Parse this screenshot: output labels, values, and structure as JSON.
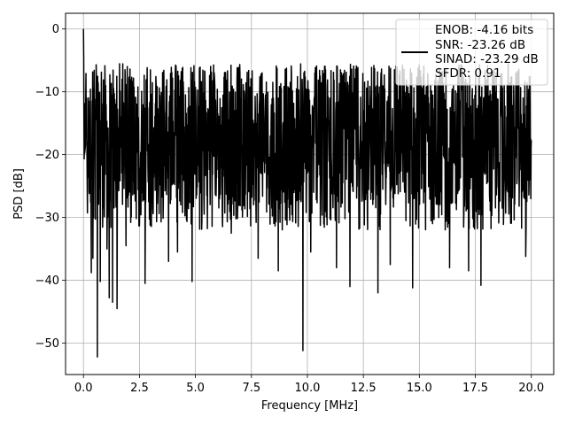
{
  "chart_data": {
    "type": "line",
    "title": "",
    "xlabel": "Frequency [MHz]",
    "ylabel": "PSD [dB]",
    "xlim": [
      -0.8,
      21.0
    ],
    "ylim": [
      -55.0,
      2.5
    ],
    "xticks": [
      0.0,
      2.5,
      5.0,
      7.5,
      10.0,
      12.5,
      15.0,
      17.5,
      20.0
    ],
    "xtick_labels": [
      "0.0",
      "2.5",
      "5.0",
      "7.5",
      "10.0",
      "12.5",
      "15.0",
      "17.5",
      "20.0"
    ],
    "yticks": [
      0,
      -10,
      -20,
      -30,
      -40,
      -50
    ],
    "ytick_labels": [
      "0",
      "−10",
      "−20",
      "−30",
      "−40",
      "−50"
    ],
    "grid": true,
    "legend_position": "top-right",
    "legend_lines": [
      "ENOB: -4.16 bits",
      "SNR: -23.26 dB",
      "SINAD: -23.29 dB",
      "SFDR: 0.91"
    ],
    "series": [
      {
        "color": "#000000",
        "x_range": [
          0.0,
          20.0
        ],
        "peak": {
          "x": 0.0,
          "y": 0.0
        },
        "envelope_top": -8.5,
        "envelope_bottom": -28.0,
        "dips": [
          {
            "x": 0.35,
            "y": -38.8
          },
          {
            "x": 0.42,
            "y": -36.5
          },
          {
            "x": 0.62,
            "y": -52.2
          },
          {
            "x": 0.75,
            "y": -40.2
          },
          {
            "x": 1.05,
            "y": -35.0
          },
          {
            "x": 1.15,
            "y": -42.8
          },
          {
            "x": 1.3,
            "y": -43.5
          },
          {
            "x": 1.5,
            "y": -44.5
          },
          {
            "x": 1.9,
            "y": -34.5
          },
          {
            "x": 2.75,
            "y": -40.5
          },
          {
            "x": 3.8,
            "y": -37.0
          },
          {
            "x": 4.2,
            "y": -35.5
          },
          {
            "x": 4.85,
            "y": -40.2
          },
          {
            "x": 6.6,
            "y": -32.5
          },
          {
            "x": 7.8,
            "y": -36.5
          },
          {
            "x": 8.7,
            "y": -38.5
          },
          {
            "x": 9.8,
            "y": -51.2
          },
          {
            "x": 10.15,
            "y": -35.5
          },
          {
            "x": 11.3,
            "y": -38.0
          },
          {
            "x": 11.9,
            "y": -41.0
          },
          {
            "x": 13.15,
            "y": -42.0
          },
          {
            "x": 13.7,
            "y": -37.5
          },
          {
            "x": 14.7,
            "y": -41.2
          },
          {
            "x": 16.35,
            "y": -38.0
          },
          {
            "x": 17.2,
            "y": -38.5
          },
          {
            "x": 17.75,
            "y": -40.8
          },
          {
            "x": 19.75,
            "y": -36.2
          }
        ]
      }
    ]
  }
}
